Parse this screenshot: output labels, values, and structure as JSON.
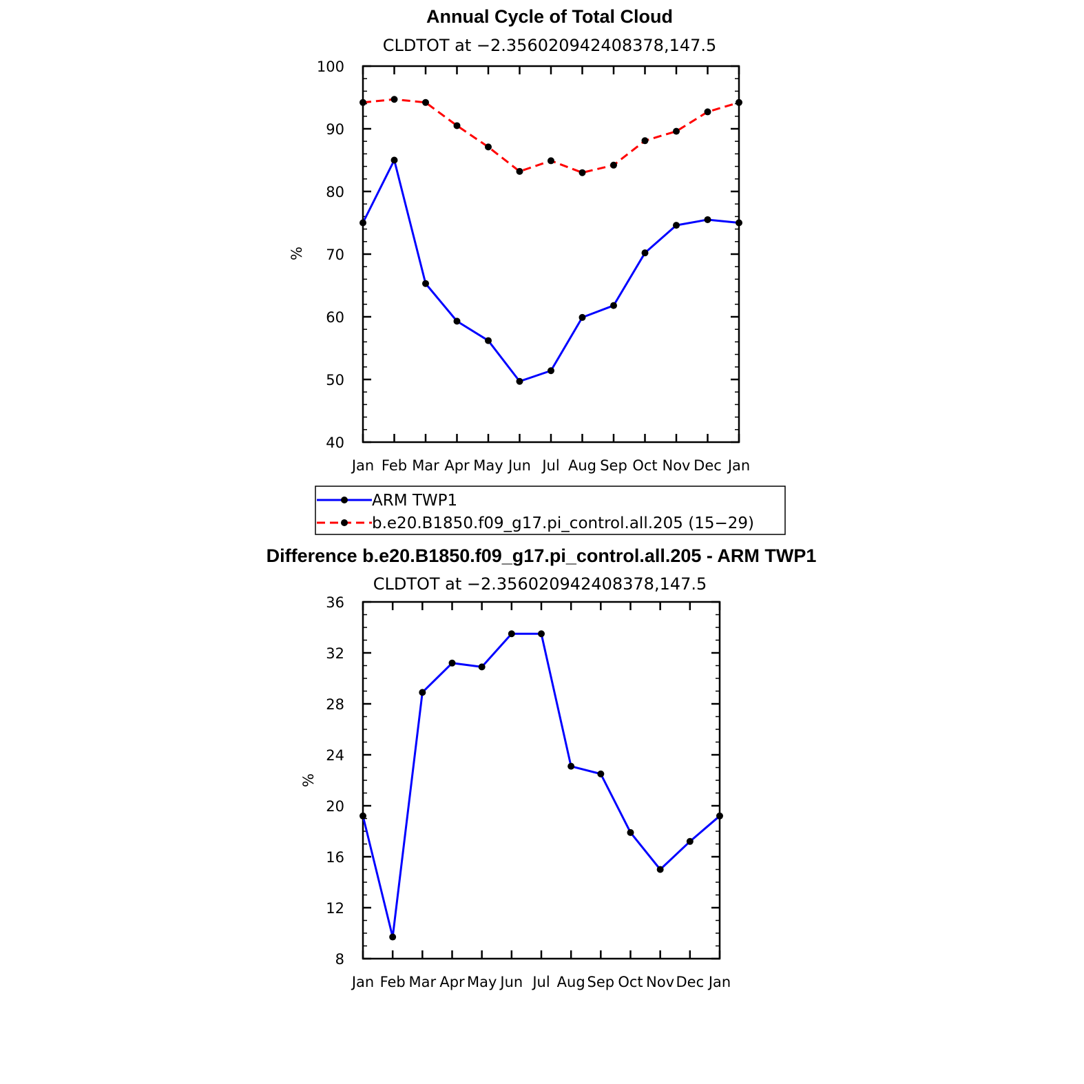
{
  "chart_data": [
    {
      "type": "line",
      "title": "Annual Cycle of Total Cloud",
      "subtitle": "CLDTOT at −2.356020942408378,147.5",
      "ylabel": "%",
      "xlabel": "",
      "categories": [
        "Jan",
        "Feb",
        "Mar",
        "Apr",
        "May",
        "Jun",
        "Jul",
        "Aug",
        "Sep",
        "Oct",
        "Nov",
        "Dec",
        "Jan"
      ],
      "yticks": [
        40,
        50,
        60,
        70,
        80,
        90,
        100
      ],
      "ylim": [
        40,
        100
      ],
      "grid": false,
      "legend_position": "below",
      "series": [
        {
          "name": "ARM TWP1",
          "color": "#0000ff",
          "dash": "solid",
          "values": [
            75.0,
            85.0,
            65.3,
            59.3,
            56.2,
            49.7,
            51.4,
            59.9,
            61.8,
            70.2,
            74.6,
            75.5,
            75.0
          ]
        },
        {
          "name": "b.e20.B1850.f09_g17.pi_control.all.205 (15−29)",
          "color": "#ff0000",
          "dash": "dashed",
          "values": [
            94.2,
            94.7,
            94.2,
            90.5,
            87.1,
            83.2,
            84.9,
            83.0,
            84.2,
            88.1,
            89.6,
            92.7,
            94.2
          ]
        }
      ]
    },
    {
      "type": "line",
      "title": "Difference b.e20.B1850.f09_g17.pi_control.all.205 - ARM TWP1",
      "subtitle": "CLDTOT at −2.356020942408378,147.5",
      "ylabel": "%",
      "xlabel": "",
      "categories": [
        "Jan",
        "Feb",
        "Mar",
        "Apr",
        "May",
        "Jun",
        "Jul",
        "Aug",
        "Sep",
        "Oct",
        "Nov",
        "Dec",
        "Jan"
      ],
      "yticks": [
        8,
        12,
        16,
        20,
        24,
        28,
        32,
        36
      ],
      "ylim": [
        8,
        36
      ],
      "grid": false,
      "series": [
        {
          "color": "#0000ff",
          "dash": "solid",
          "values": [
            19.2,
            9.7,
            28.9,
            31.2,
            30.9,
            33.5,
            33.5,
            23.1,
            22.5,
            17.9,
            15.0,
            17.2,
            19.2
          ]
        }
      ]
    }
  ]
}
